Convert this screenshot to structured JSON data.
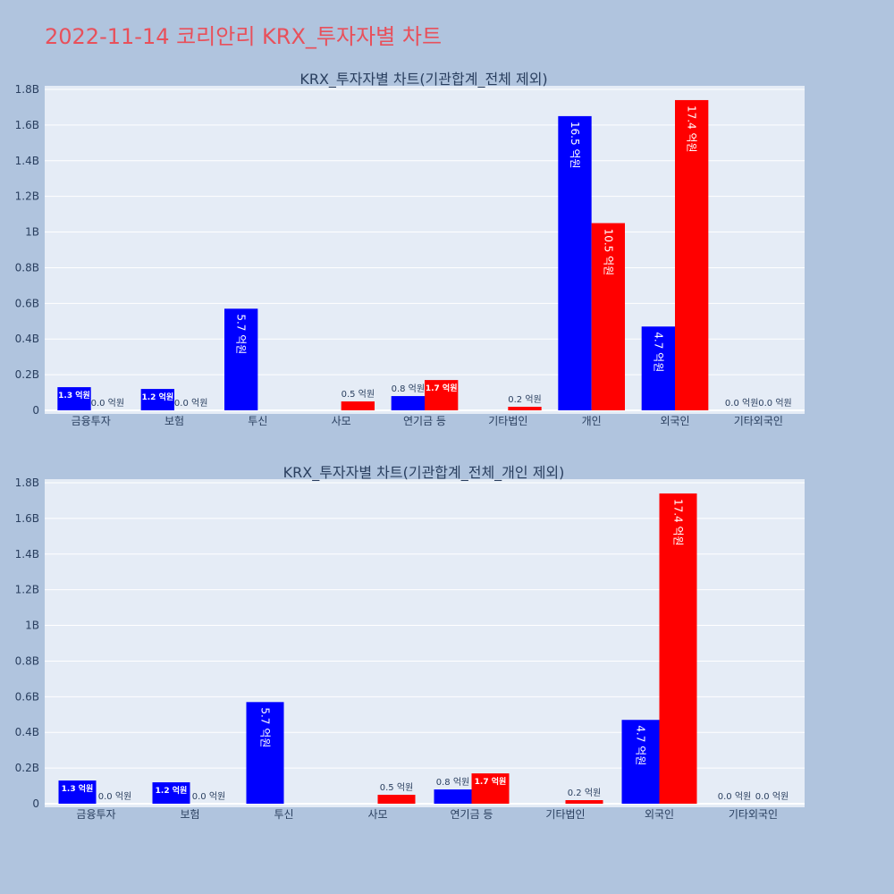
{
  "page": {
    "title": "2022-11-14 코리안리 KRX_투자자별 차트",
    "title_color": "#e8505b",
    "background": "#b0c4de",
    "plot_background": "#e5ecf6"
  },
  "chart_data": [
    {
      "type": "bar",
      "title": "KRX_투자자별 차트(기관합계_전체 제외)",
      "categories": [
        "금융투자",
        "보험",
        "투신",
        "사모",
        "연기금 등",
        "기타법인",
        "개인",
        "외국인",
        "기타외국인"
      ],
      "ylim": [
        0,
        1.82
      ],
      "yticks": [
        0,
        0.2,
        0.4,
        0.6,
        0.8,
        1,
        1.2,
        1.4,
        1.6,
        1.8
      ],
      "ytick_labels": [
        "0",
        "0.2B",
        "0.4B",
        "0.6B",
        "0.8B",
        "1B",
        "1.2B",
        "1.4B",
        "1.6B",
        "1.8B"
      ],
      "grid": true,
      "series": [
        {
          "color": "#0000ff",
          "values": [
            0.13,
            0.12,
            0.57,
            0,
            0.08,
            0,
            1.65,
            0.47,
            0
          ],
          "labels": [
            "1.3 억원",
            "1.2 억원",
            "5.7 억원",
            "",
            "0.8 억원",
            "",
            "16.5 억원",
            "4.7 억원",
            "0.0 억원"
          ]
        },
        {
          "color": "#ff0000",
          "values": [
            0,
            0,
            0,
            0.05,
            0.17,
            0.02,
            1.05,
            1.74,
            0
          ],
          "labels": [
            "0.0 억원",
            "0.0 억원",
            "",
            "0.5 억원",
            "1.7 억원",
            "0.2 억원",
            "10.5 억원",
            "17.4 억원",
            "0.0 억원"
          ]
        }
      ]
    },
    {
      "type": "bar",
      "title": "KRX_투자자별 차트(기관합계_전체_개인 제외)",
      "categories": [
        "금융투자",
        "보험",
        "투신",
        "사모",
        "연기금 등",
        "기타법인",
        "외국인",
        "기타외국인"
      ],
      "ylim": [
        0,
        1.82
      ],
      "yticks": [
        0,
        0.2,
        0.4,
        0.6,
        0.8,
        1,
        1.2,
        1.4,
        1.6,
        1.8
      ],
      "ytick_labels": [
        "0",
        "0.2B",
        "0.4B",
        "0.6B",
        "0.8B",
        "1B",
        "1.2B",
        "1.4B",
        "1.6B",
        "1.8B"
      ],
      "grid": true,
      "series": [
        {
          "color": "#0000ff",
          "values": [
            0.13,
            0.12,
            0.57,
            0,
            0.08,
            0,
            0.47,
            0
          ],
          "labels": [
            "1.3 억원",
            "1.2 억원",
            "5.7 억원",
            "",
            "0.8 억원",
            "",
            "4.7 억원",
            "0.0 억원"
          ]
        },
        {
          "color": "#ff0000",
          "values": [
            0,
            0,
            0,
            0.05,
            0.17,
            0.02,
            1.74,
            0
          ],
          "labels": [
            "0.0 억원",
            "0.0 억원",
            "",
            "0.5 억원",
            "1.7 억원",
            "0.2 억원",
            "17.4 억원",
            "0.0 억원"
          ]
        }
      ]
    }
  ]
}
